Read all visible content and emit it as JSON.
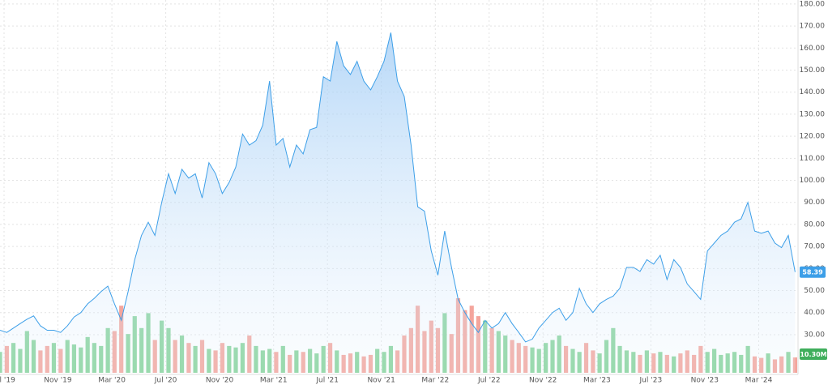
{
  "chart_data": {
    "type": "area",
    "xlim": [
      2019.475,
      2024.41
    ],
    "ylim": [
      12.7,
      181.8
    ],
    "grid": true,
    "line_color": "#3d9fe8",
    "yticks": [
      {
        "value": 30,
        "label": "30.00"
      },
      {
        "value": 40,
        "label": "40.00"
      },
      {
        "value": 50,
        "label": "50.00"
      },
      {
        "value": 60,
        "label": "60.00"
      },
      {
        "value": 70,
        "label": "70.00"
      },
      {
        "value": 80,
        "label": "80.00"
      },
      {
        "value": 90,
        "label": "90.00"
      },
      {
        "value": 100,
        "label": "100.00"
      },
      {
        "value": 110,
        "label": "110.00"
      },
      {
        "value": 120,
        "label": "120.00"
      },
      {
        "value": 130,
        "label": "130.00"
      },
      {
        "value": 140,
        "label": "140.00"
      },
      {
        "value": 150,
        "label": "150.00"
      },
      {
        "value": 160,
        "label": "160.00"
      },
      {
        "value": 170,
        "label": "170.00"
      },
      {
        "value": 180,
        "label": "180.00"
      }
    ],
    "xticks": [
      {
        "value": 2019.5,
        "label": "Jul '19"
      },
      {
        "value": 2019.833,
        "label": "Nov '19"
      },
      {
        "value": 2020.167,
        "label": "Mar '20"
      },
      {
        "value": 2020.5,
        "label": "Jul '20"
      },
      {
        "value": 2020.833,
        "label": "Nov '20"
      },
      {
        "value": 2021.167,
        "label": "Mar '21"
      },
      {
        "value": 2021.5,
        "label": "Jul '21"
      },
      {
        "value": 2021.833,
        "label": "Nov '21"
      },
      {
        "value": 2022.167,
        "label": "Mar '22"
      },
      {
        "value": 2022.5,
        "label": "Jul '22"
      },
      {
        "value": 2022.833,
        "label": "Nov '22"
      },
      {
        "value": 2023.167,
        "label": "Mar '23"
      },
      {
        "value": 2023.5,
        "label": "Jul '23"
      },
      {
        "value": 2023.833,
        "label": "Nov '23"
      },
      {
        "value": 2024.167,
        "label": "Mar '24"
      }
    ],
    "x": [
      2019.475,
      2019.517,
      2019.558,
      2019.6,
      2019.642,
      2019.683,
      2019.725,
      2019.767,
      2019.808,
      2019.85,
      2019.892,
      2019.933,
      2019.975,
      2020.017,
      2020.058,
      2020.1,
      2020.142,
      2020.183,
      2020.225,
      2020.267,
      2020.308,
      2020.35,
      2020.392,
      2020.433,
      2020.475,
      2020.517,
      2020.558,
      2020.6,
      2020.642,
      2020.683,
      2020.725,
      2020.767,
      2020.808,
      2020.85,
      2020.892,
      2020.933,
      2020.975,
      2021.017,
      2021.058,
      2021.1,
      2021.142,
      2021.183,
      2021.225,
      2021.267,
      2021.308,
      2021.35,
      2021.392,
      2021.433,
      2021.475,
      2021.517,
      2021.558,
      2021.6,
      2021.642,
      2021.683,
      2021.725,
      2021.767,
      2021.808,
      2021.85,
      2021.892,
      2021.933,
      2021.975,
      2022.017,
      2022.058,
      2022.1,
      2022.142,
      2022.183,
      2022.225,
      2022.267,
      2022.308,
      2022.35,
      2022.392,
      2022.433,
      2022.475,
      2022.517,
      2022.558,
      2022.6,
      2022.642,
      2022.683,
      2022.725,
      2022.767,
      2022.808,
      2022.85,
      2022.892,
      2022.933,
      2022.975,
      2023.017,
      2023.058,
      2023.1,
      2023.142,
      2023.183,
      2023.225,
      2023.267,
      2023.308,
      2023.35,
      2023.392,
      2023.433,
      2023.475,
      2023.517,
      2023.558,
      2023.6,
      2023.642,
      2023.683,
      2023.725,
      2023.767,
      2023.808,
      2023.85,
      2023.892,
      2023.933,
      2023.975,
      2024.017,
      2024.058,
      2024.1,
      2024.142,
      2024.183,
      2024.225,
      2024.267,
      2024.308,
      2024.35,
      2024.392
    ],
    "series": [
      {
        "color": "#3d9fe8",
        "values": [
          32,
          31,
          33,
          35,
          37,
          38.5,
          34,
          32,
          32,
          31,
          34,
          38,
          40,
          44,
          46.5,
          49.5,
          52,
          44,
          36.5,
          49.5,
          64,
          75,
          81,
          75,
          90,
          103,
          94,
          105,
          101,
          103,
          92,
          108,
          103,
          94,
          99,
          106,
          121,
          116,
          118,
          125,
          145,
          116,
          119,
          106,
          116,
          112,
          123,
          124,
          147,
          145,
          163,
          152,
          148,
          154,
          145,
          141,
          147,
          154,
          167,
          145,
          138,
          116,
          88,
          86,
          68,
          57,
          77,
          60.5,
          46,
          40,
          35,
          31,
          36.5,
          33,
          35,
          40,
          35,
          31,
          26.7,
          28,
          33,
          36.5,
          40,
          42,
          36.5,
          40,
          51,
          44,
          40,
          44,
          46,
          47.5,
          51,
          60.5,
          60.5,
          58.7,
          64,
          62,
          66,
          55,
          64,
          60.5,
          53,
          49.5,
          46,
          68,
          71.5,
          75,
          77,
          81,
          82.5,
          90,
          77,
          76,
          77,
          71.5,
          69.5,
          75,
          58.39
        ]
      }
    ],
    "volume": {
      "up_color": "#86d39a",
      "down_color": "#f4a59c",
      "label": "10.30M",
      "values": [
        14,
        18,
        20,
        16,
        28,
        22,
        15,
        18,
        20,
        16,
        22,
        19,
        17,
        24,
        20,
        18,
        30,
        28,
        45,
        26,
        38,
        30,
        40,
        22,
        35,
        30,
        22,
        25,
        20,
        18,
        22,
        16,
        15,
        20,
        18,
        17,
        20,
        25,
        18,
        15,
        16,
        14,
        18,
        12,
        15,
        14,
        16,
        13,
        18,
        20,
        15,
        12,
        13,
        14,
        11,
        12,
        16,
        14,
        18,
        15,
        25,
        30,
        45,
        28,
        35,
        30,
        40,
        26,
        50,
        42,
        45,
        38,
        35,
        30,
        28,
        25,
        22,
        20,
        18,
        17,
        16,
        20,
        22,
        25,
        18,
        16,
        14,
        20,
        15,
        13,
        22,
        30,
        18,
        15,
        14,
        12,
        15,
        13,
        14,
        12,
        11,
        13,
        15,
        12,
        18,
        14,
        16,
        12,
        13,
        14,
        12,
        18,
        11,
        10,
        13,
        9,
        11,
        14,
        10.3
      ]
    }
  }
}
